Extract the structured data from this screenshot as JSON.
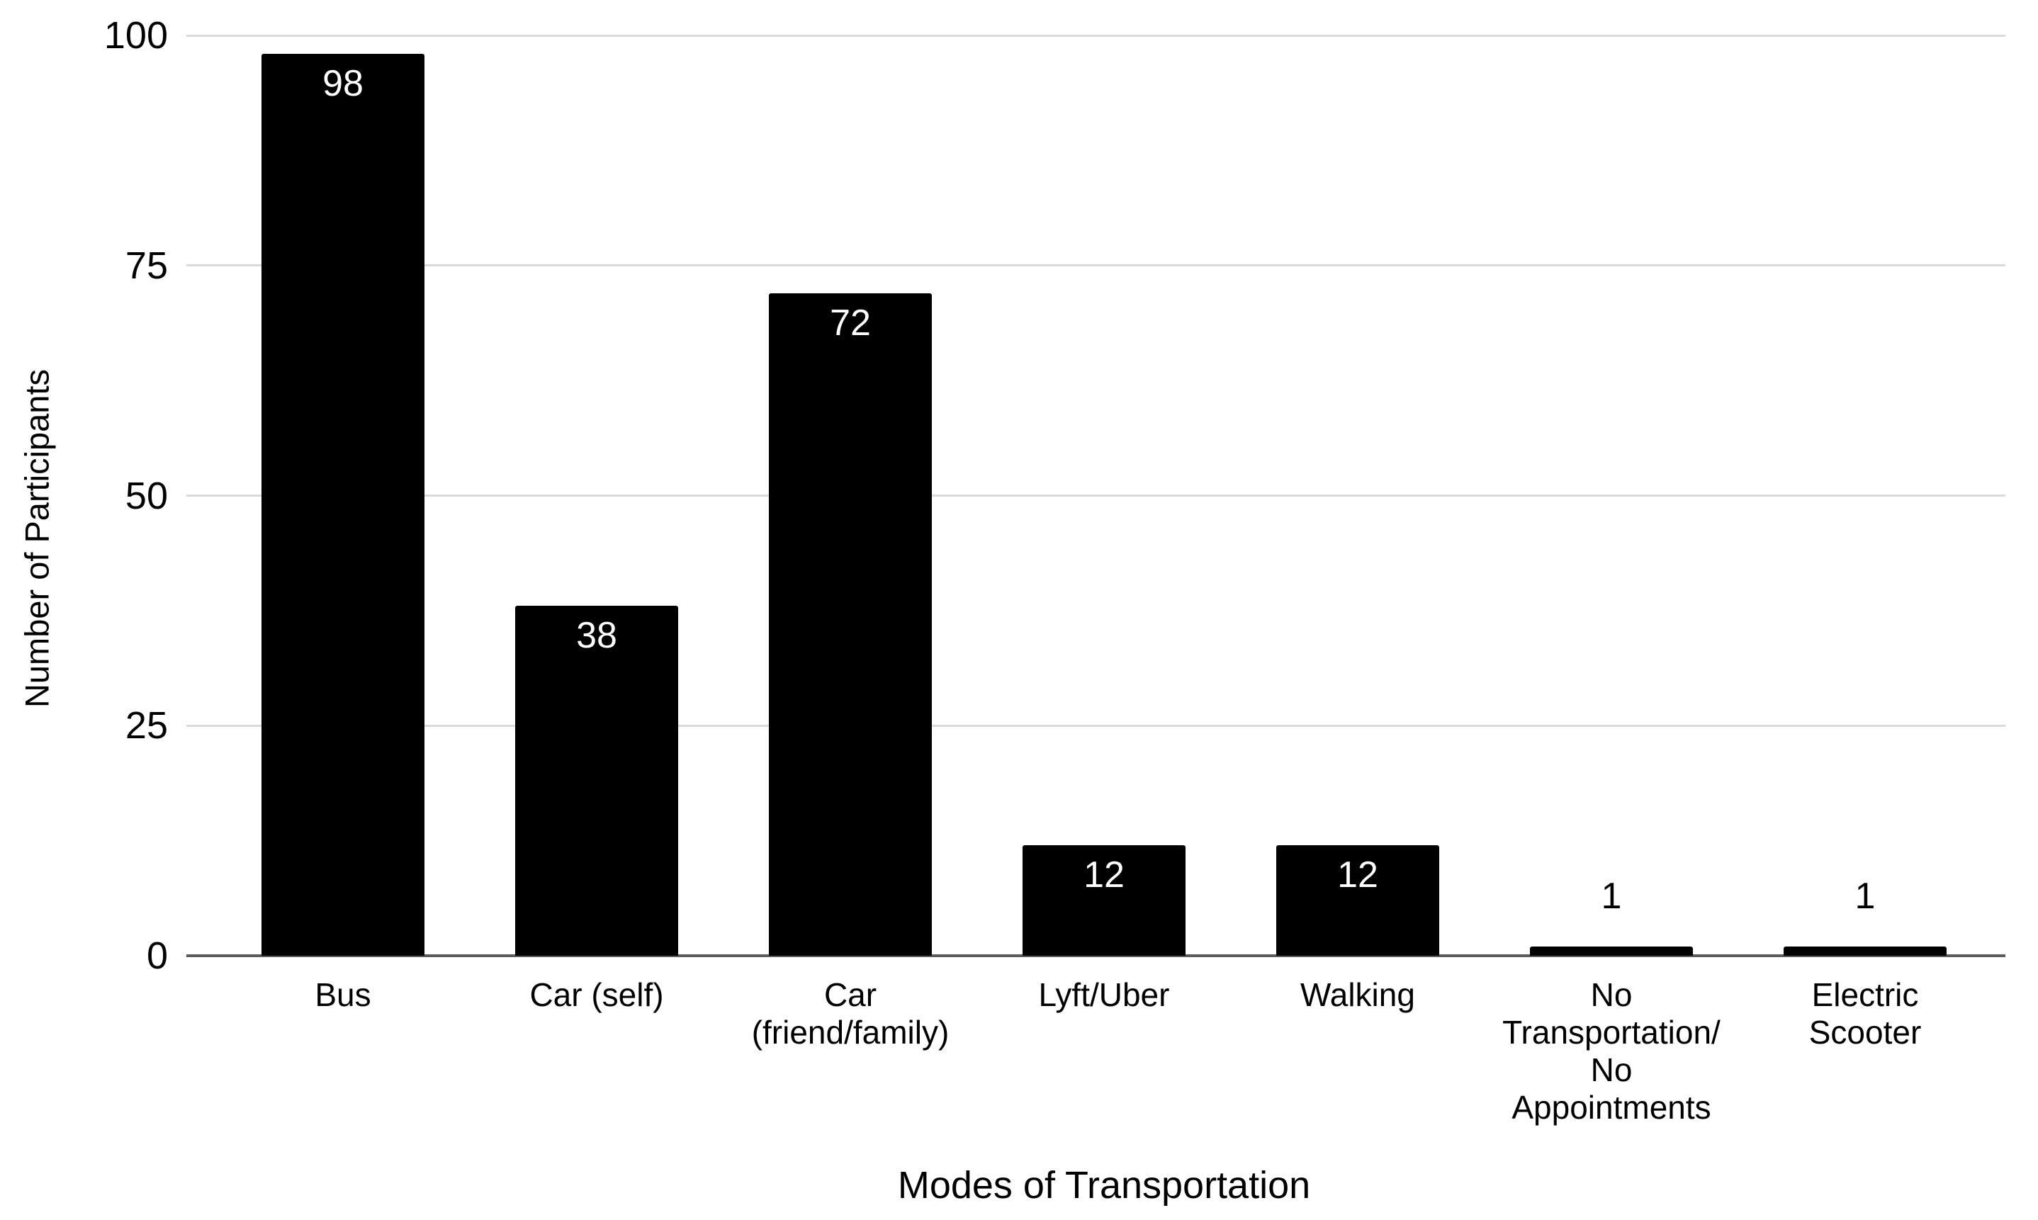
{
  "chart_data": {
    "type": "bar",
    "title": "",
    "xlabel": "Modes of Transportation",
    "ylabel": "Number of Participants",
    "categories": [
      "Bus",
      "Car (self)",
      "Car (friend/family)",
      "Lyft/Uber",
      "Walking",
      "No Transportation/ No Appointments",
      "Electric Scooter"
    ],
    "category_display_lines": [
      [
        "Bus"
      ],
      [
        "Car (self)"
      ],
      [
        "Car",
        "(friend/family)"
      ],
      [
        "Lyft/Uber"
      ],
      [
        "Walking"
      ],
      [
        "No",
        "Transportation/",
        "No",
        "Appointments"
      ],
      [
        "Electric",
        "Scooter"
      ]
    ],
    "values": [
      98,
      38,
      72,
      12,
      12,
      1,
      1
    ],
    "y_ticks": [
      0,
      25,
      50,
      75,
      100
    ],
    "ylim": [
      0,
      100
    ],
    "grid": true,
    "legend_position": "none",
    "colors": {
      "bar": "#000000",
      "label_inside": "#ffffff",
      "label_outside": "#000000",
      "gridline": "#dadada",
      "axis_line": "#5c5c5c",
      "background": "#ffffff",
      "text": "#000000"
    },
    "inside_label_min_value": 5
  }
}
